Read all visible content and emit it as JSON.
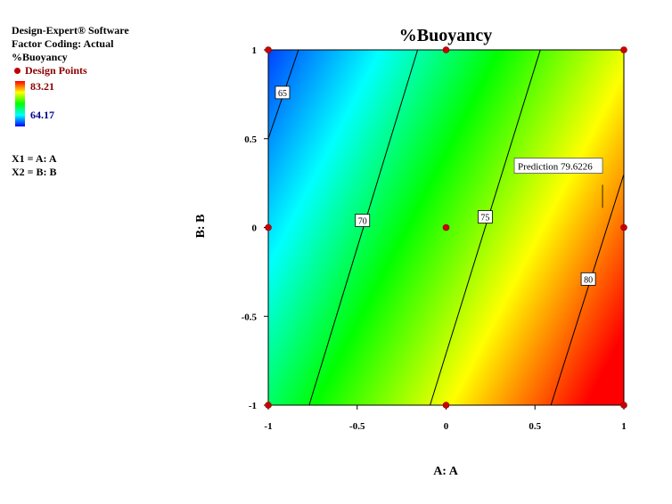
{
  "info": {
    "software": "Design-Expert® Software",
    "coding": "Factor Coding: Actual",
    "response": "%Buoyancy",
    "design_points_label": "Design Points",
    "legend_high": "83.21",
    "legend_low": "64.17",
    "x1": "X1 = A: A",
    "x2": "X2 = B: B"
  },
  "chart_data": {
    "type": "contour",
    "title": "%Buoyancy",
    "xlabel": "A: A",
    "ylabel": "B: B",
    "xlim": [
      -1,
      1
    ],
    "ylim": [
      -1,
      1
    ],
    "xticks": [
      "-1",
      "-0.5",
      "0",
      "0.5",
      "1"
    ],
    "yticks": [
      "-1",
      "-0.5",
      "0",
      "0.5",
      "1"
    ],
    "color_scale": {
      "min": 64.17,
      "max": 83.21,
      "colors": [
        "#0000ff",
        "#00ffff",
        "#00ff00",
        "#ffff00",
        "#ff0000"
      ]
    },
    "contours": [
      {
        "label": "65",
        "points": [
          [
            -1,
            0.5
          ],
          [
            -0.83,
            1
          ]
        ],
        "label_at": [
          -0.92,
          0.76
        ]
      },
      {
        "label": "70",
        "points": [
          [
            -0.77,
            -1
          ],
          [
            -0.16,
            1
          ]
        ],
        "label_at": [
          -0.47,
          0.04
        ]
      },
      {
        "label": "75",
        "points": [
          [
            -0.09,
            -1
          ],
          [
            0.53,
            1
          ]
        ],
        "label_at": [
          0.22,
          0.06
        ]
      },
      {
        "label": "80",
        "points": [
          [
            0.59,
            -1
          ],
          [
            1,
            0.3
          ]
        ],
        "label_at": [
          0.8,
          -0.29
        ]
      }
    ],
    "design_points": [
      [
        -1,
        -1
      ],
      [
        0,
        -1
      ],
      [
        1,
        -1
      ],
      [
        -1,
        0
      ],
      [
        0,
        0
      ],
      [
        1,
        0
      ],
      [
        -1,
        1
      ],
      [
        0,
        1
      ],
      [
        1,
        1
      ]
    ],
    "prediction": {
      "label": "Prediction",
      "value": "79.6226",
      "at": [
        0.89,
        0.11
      ]
    }
  }
}
